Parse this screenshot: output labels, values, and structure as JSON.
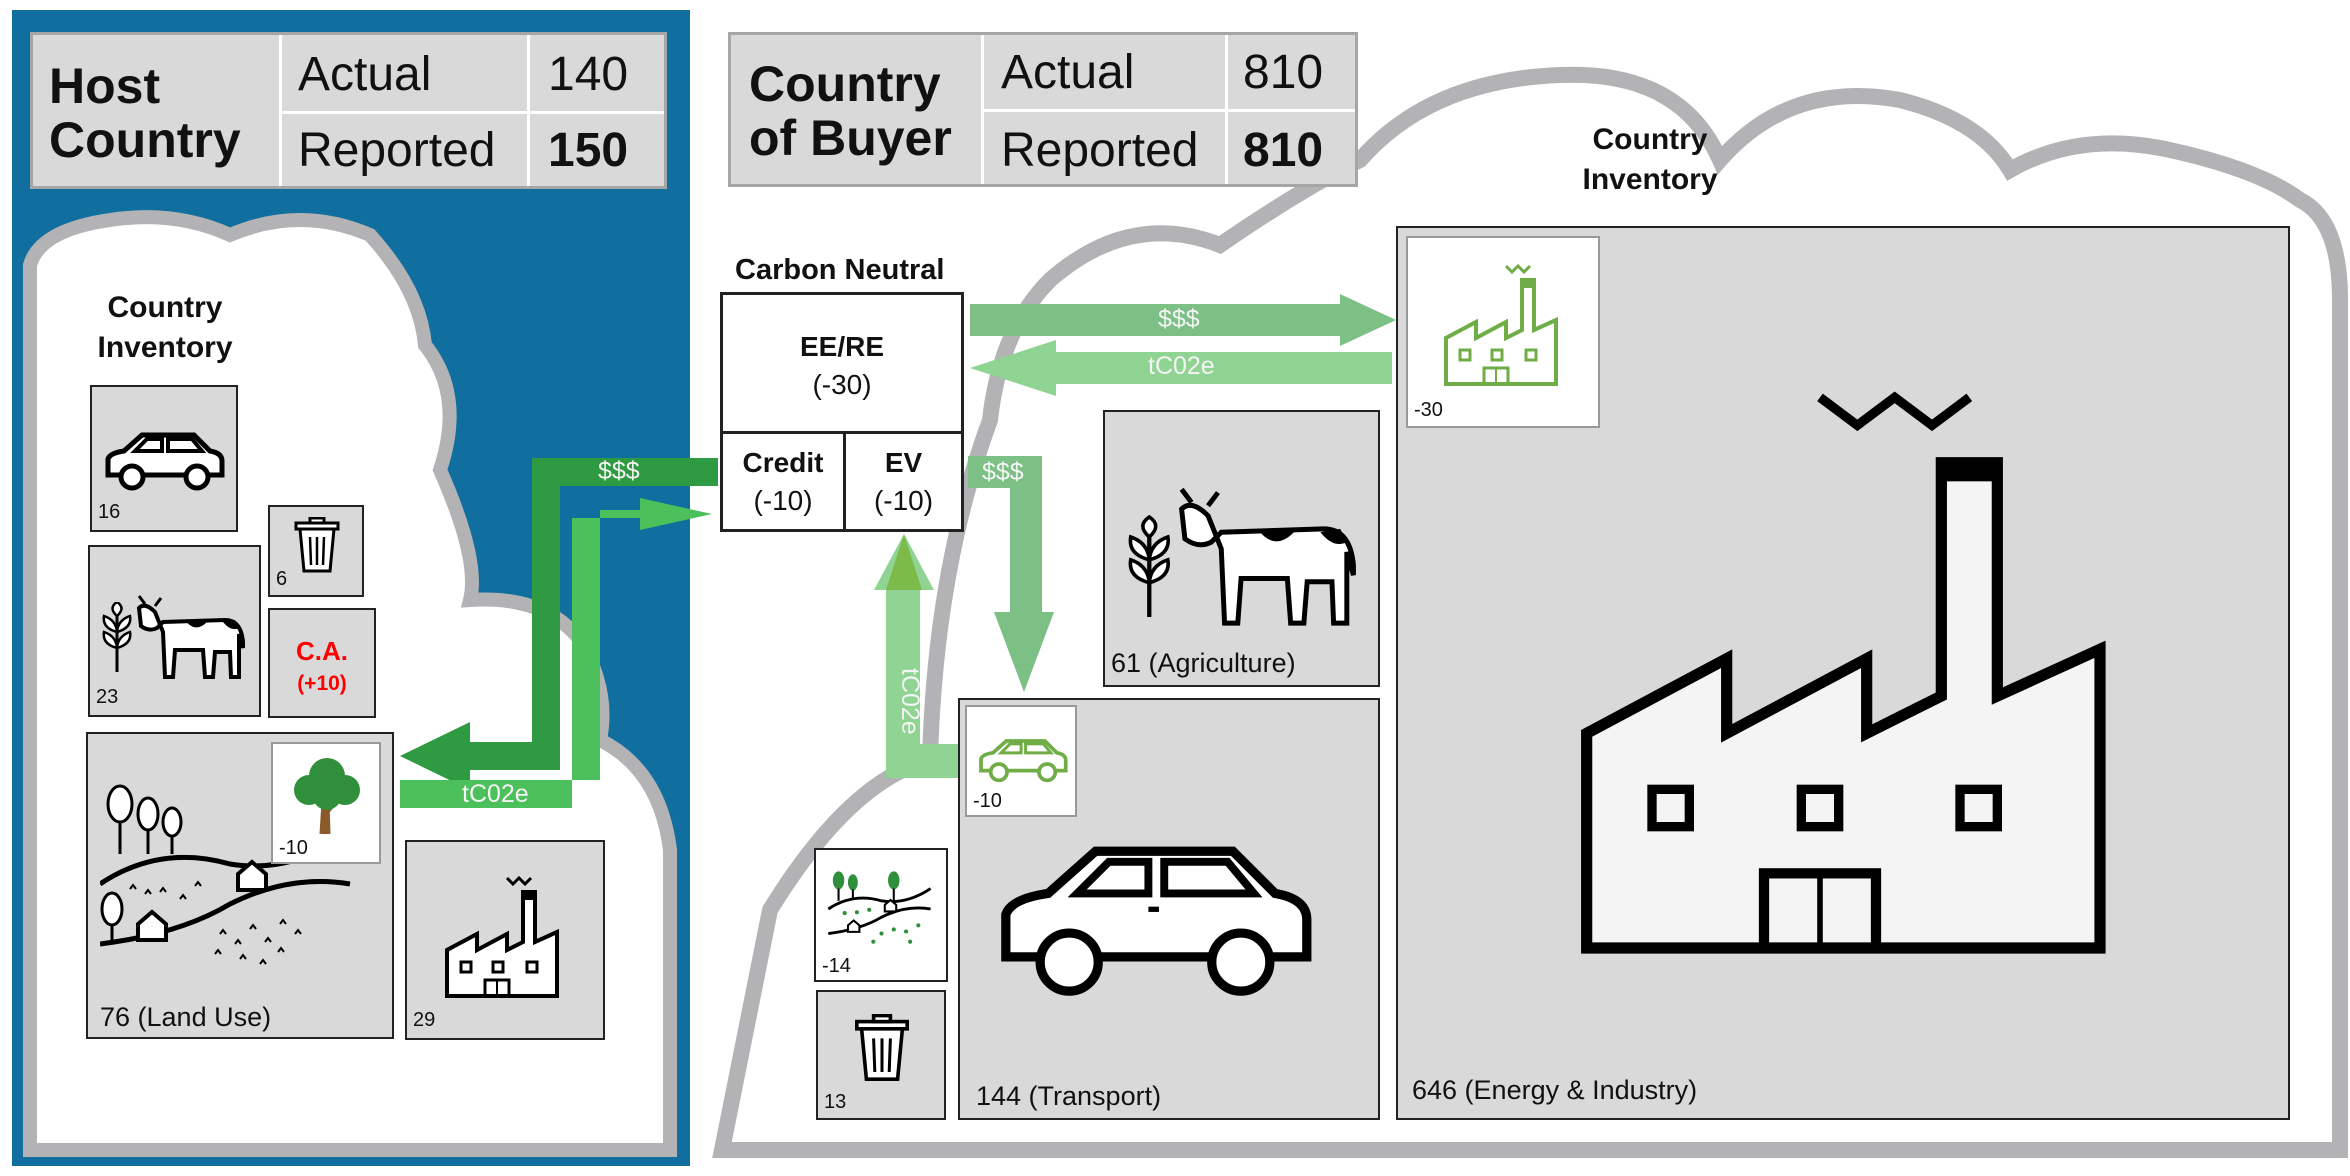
{
  "host": {
    "title_line1": "Host",
    "title_line2": "Country",
    "actual_label": "Actual",
    "actual_value": "140",
    "reported_label": "Reported",
    "reported_value": "150",
    "inventory_line1": "Country",
    "inventory_line2": "Inventory",
    "transport_value": "16",
    "waste_value": "6",
    "agriculture_value": "23",
    "ca_label": "C.A.",
    "ca_value": "(+10)",
    "land_use_label": "76 (Land Use)",
    "tree_value": "-10",
    "industry_value": "29"
  },
  "buyer": {
    "title_line1": "Country",
    "title_line2": "of Buyer",
    "actual_label": "Actual",
    "actual_value": "810",
    "reported_label": "Reported",
    "reported_value": "810",
    "inventory_line1": "Country",
    "inventory_line2": "Inventory",
    "agriculture_label": "61 (Agriculture)",
    "transport_label": "144 (Transport)",
    "ev_car_value": "-10",
    "land_use_value": "-14",
    "waste_value": "13",
    "industry_label": "646 (Energy & Industry)",
    "green_factory_value": "-30"
  },
  "carbon_neutral": {
    "title": "Carbon Neutral",
    "eere_label": "EE/RE",
    "eere_value": "(-30)",
    "credit_label": "Credit",
    "credit_value": "(-10)",
    "ev_label": "EV",
    "ev_value": "(-10)"
  },
  "flows": {
    "money": "$$$",
    "emissions": "tC02e"
  },
  "colors": {
    "host_bg": "#106f9e",
    "buyer_bg": "#d6aa29",
    "cloud_border": "#b3b3b6",
    "box_fill": "#d9d9d9",
    "dark_green": "#2e9a41",
    "bright_green": "#4cc05a",
    "pale_green": "#8fd493",
    "mid_green": "#7cc085",
    "reported_red": "#ff0000"
  },
  "icons": [
    "car-icon",
    "trash-icon",
    "cow-icon",
    "wheat-icon",
    "tree-icon",
    "landscape-icon",
    "factory-icon",
    "green-factory-icon",
    "ev-car-icon"
  ]
}
